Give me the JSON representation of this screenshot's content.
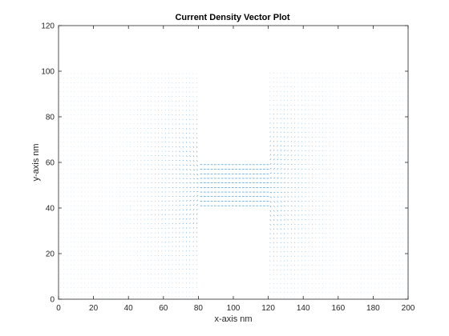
{
  "chart_data": {
    "type": "quiver",
    "title": "Current Density Vector Plot",
    "xlabel": "x-axis nm",
    "ylabel": "y-axis nm",
    "xlim": [
      0,
      200
    ],
    "ylim": [
      0,
      120
    ],
    "xticks": [
      "0",
      "20",
      "40",
      "60",
      "80",
      "100",
      "120",
      "140",
      "160",
      "180",
      "200"
    ],
    "yticks": [
      "0",
      "20",
      "40",
      "60",
      "80",
      "100",
      "120"
    ],
    "grid": false,
    "legend": "none",
    "series_color": "#0072BD",
    "conductor": {
      "outer": {
        "x": [
          0,
          200
        ],
        "y": [
          0,
          100
        ]
      },
      "constriction": {
        "x": [
          80,
          120
        ],
        "y": [
          41,
          59
        ]
      }
    },
    "vector_field": {
      "x_spacing": 2,
      "y_spacing": 2,
      "direction": "+x",
      "description_points": [
        {
          "x": 100,
          "y": 50,
          "magnitude": "high"
        },
        {
          "x": 30,
          "y": 50,
          "magnitude": "medium"
        },
        {
          "x": 30,
          "y": 10,
          "magnitude": "low"
        },
        {
          "x": 100,
          "y": 80,
          "magnitude": "none"
        },
        {
          "x": 100,
          "y": 20,
          "magnitude": "none"
        }
      ]
    }
  }
}
